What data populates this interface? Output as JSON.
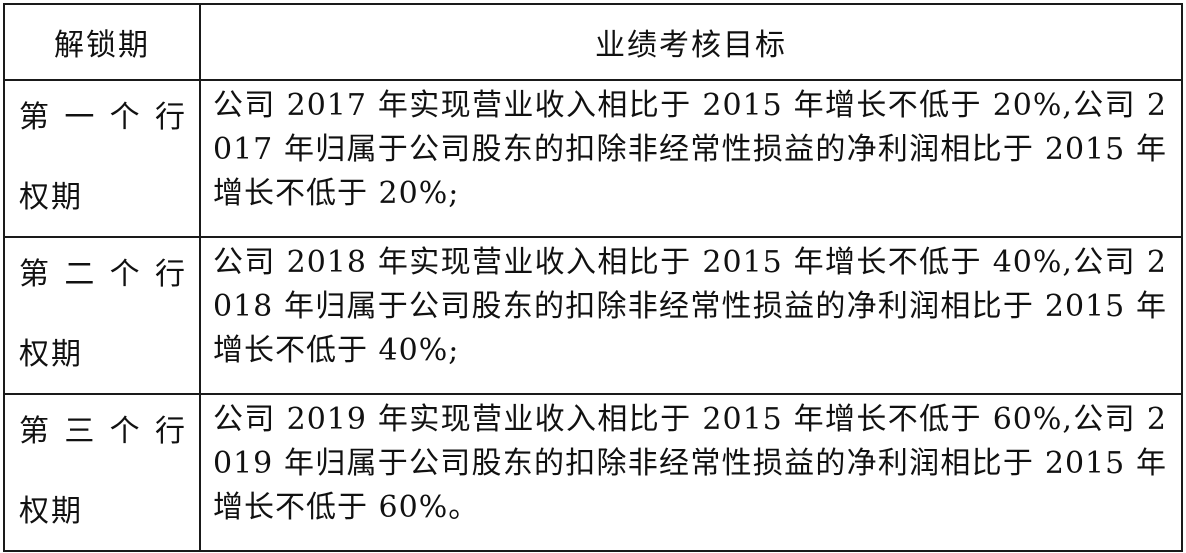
{
  "table": {
    "headers": [
      "解锁期",
      "业绩考核目标"
    ],
    "rows": [
      {
        "period_line1_chars": [
          "第",
          "一",
          "个",
          "行"
        ],
        "period_line2": "权期",
        "target": "公司 2017 年实现营业收入相比于 2015 年增长不低于 20%,公司 2017 年归属于公司股东的扣除非经常性损益的净利润相比于 2015 年增长不低于 20%;"
      },
      {
        "period_line1_chars": [
          "第",
          "二",
          "个",
          "行"
        ],
        "period_line2": "权期",
        "target": "公司 2018 年实现营业收入相比于 2015 年增长不低于 40%,公司 2018 年归属于公司股东的扣除非经常性损益的净利润相比于 2015 年增长不低于 40%;"
      },
      {
        "period_line1_chars": [
          "第",
          "三",
          "个",
          "行"
        ],
        "period_line2": "权期",
        "target": "公司 2019 年实现营业收入相比于 2015 年增长不低于 60%,公司 2019 年归属于公司股东的扣除非经常性损益的净利润相比于 2015 年增长不低于 60%。"
      }
    ]
  }
}
